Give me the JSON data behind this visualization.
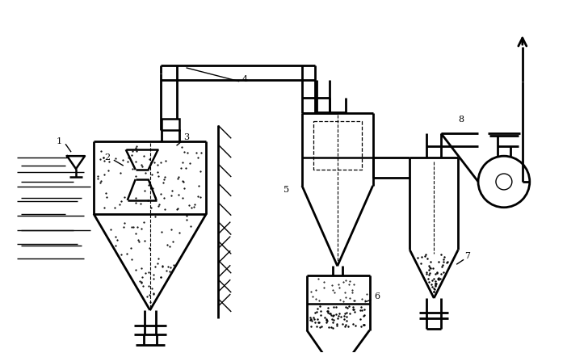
{
  "line_color": "#000000",
  "bg_color": "#ffffff",
  "lw": 1.8,
  "lw_thin": 1.0,
  "figsize": [
    7.02,
    4.37
  ],
  "dpi": 100
}
